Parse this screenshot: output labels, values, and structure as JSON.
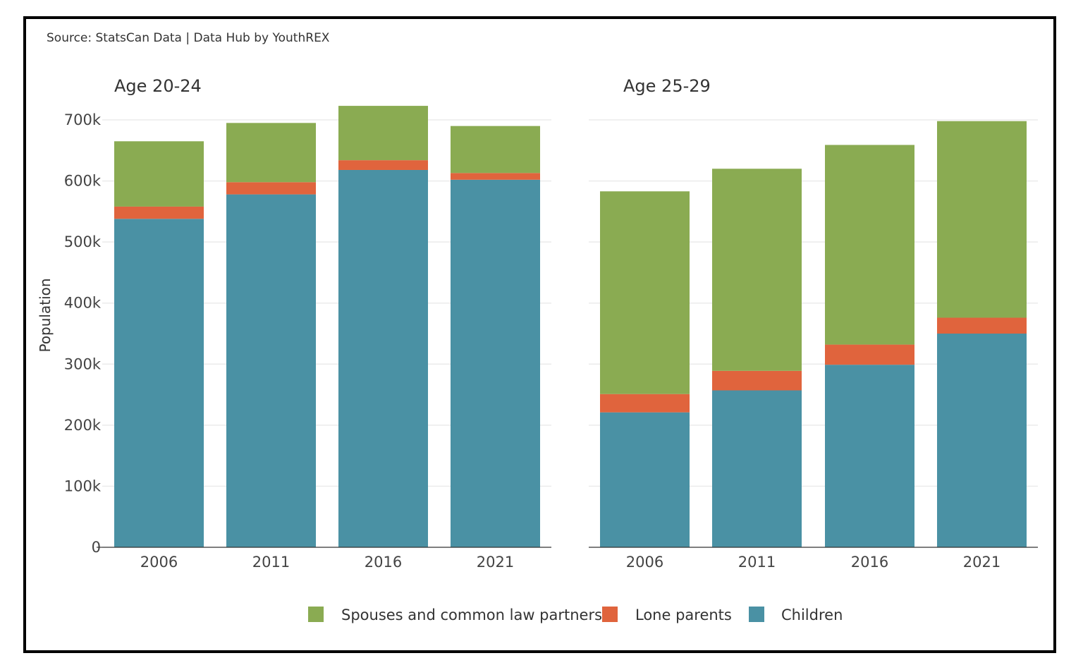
{
  "source": "Source: StatsCan Data | Data Hub by YouthREX",
  "chart_data": [
    {
      "type": "bar",
      "stacked": true,
      "title": "Age 20-24",
      "ylabel": "Population",
      "ylim": [
        0,
        700000
      ],
      "yticks": [
        0,
        100000,
        200000,
        300000,
        400000,
        500000,
        600000,
        700000
      ],
      "ytick_labels": [
        "0",
        "100k",
        "200k",
        "300k",
        "400k",
        "500k",
        "600k",
        "700k"
      ],
      "categories": [
        "2006",
        "2011",
        "2016",
        "2021"
      ],
      "grid": "horizontal",
      "series": [
        {
          "name": "Children",
          "color": "#4a91a4",
          "values": [
            538000,
            578000,
            618000,
            602000
          ]
        },
        {
          "name": "Lone parents",
          "color": "#e0643d",
          "values": [
            20000,
            20000,
            16000,
            11000
          ]
        },
        {
          "name": "Spouses and common law partners",
          "color": "#8aab52",
          "values": [
            107000,
            97000,
            89000,
            77000
          ]
        }
      ]
    },
    {
      "type": "bar",
      "stacked": true,
      "title": "Age 25-29",
      "ylim": [
        0,
        700000
      ],
      "categories": [
        "2006",
        "2011",
        "2016",
        "2021"
      ],
      "grid": "horizontal",
      "series": [
        {
          "name": "Children",
          "color": "#4a91a4",
          "values": [
            221000,
            257000,
            299000,
            350000
          ]
        },
        {
          "name": "Lone parents",
          "color": "#e0643d",
          "values": [
            30000,
            32000,
            33000,
            26000
          ]
        },
        {
          "name": "Spouses and common law partners",
          "color": "#8aab52",
          "values": [
            332000,
            331000,
            327000,
            322000
          ]
        }
      ]
    }
  ],
  "legend": {
    "position": "bottom",
    "items": [
      {
        "label": "Spouses and common law partners",
        "color": "#8aab52"
      },
      {
        "label": "Lone parents",
        "color": "#e0643d"
      },
      {
        "label": "Children",
        "color": "#4a91a4"
      }
    ]
  }
}
